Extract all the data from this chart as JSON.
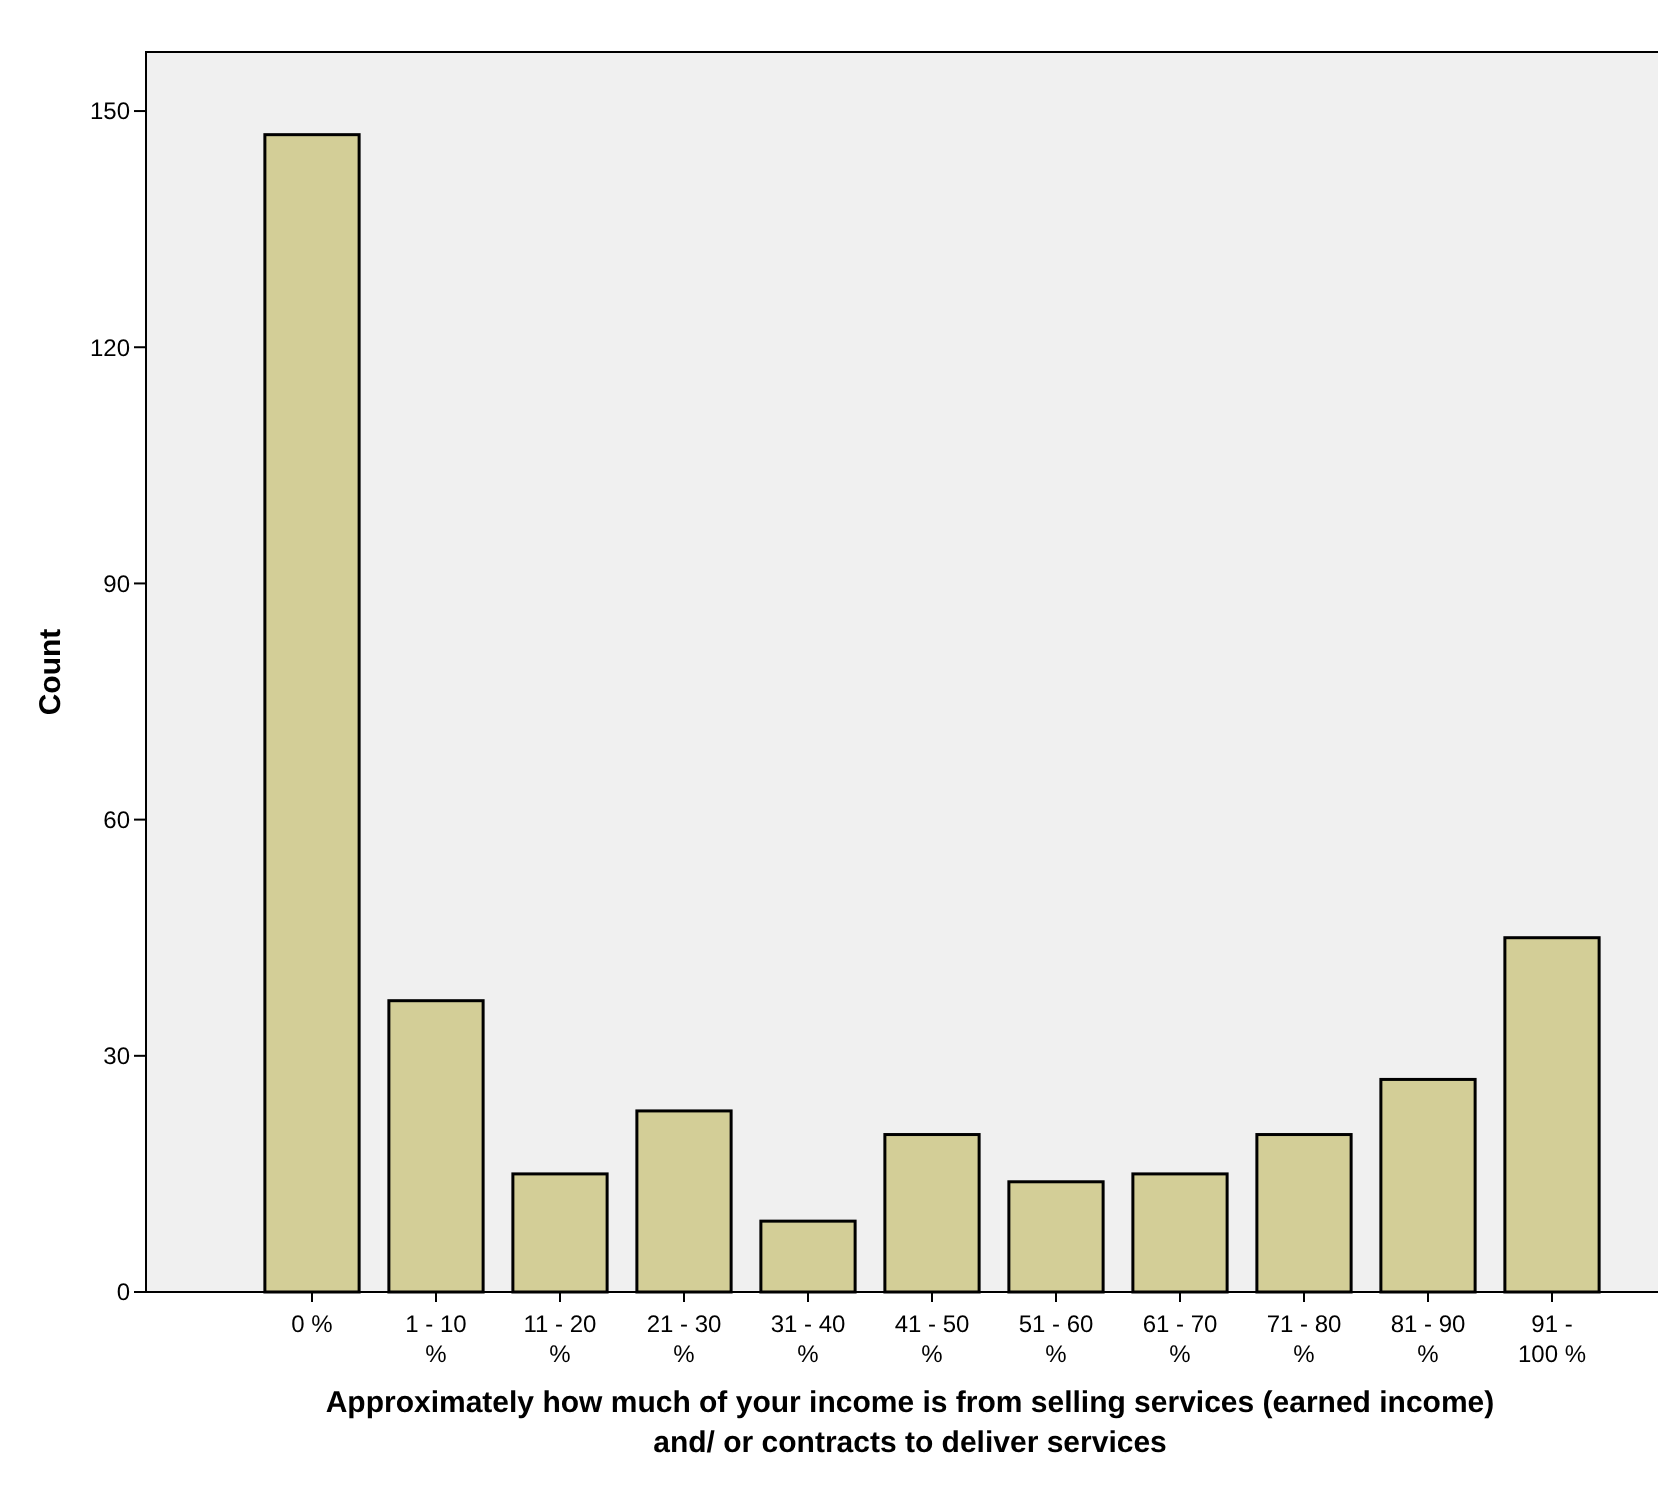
{
  "chart_data": {
    "type": "bar",
    "xlabel": "Approximately how much of your income is from selling services (earned income) and/ or contracts to deliver services",
    "ylabel": "Count",
    "categories": [
      "0 %",
      "1 - 10 %",
      "11 - 20 %",
      "21 - 30 %",
      "31 - 40 %",
      "41 - 50 %",
      "51 - 60 %",
      "61 - 70 %",
      "71 - 80 %",
      "81 - 90 %",
      "91 - 100 %"
    ],
    "values": [
      147,
      37,
      15,
      23,
      9,
      20,
      14,
      15,
      20,
      27,
      45
    ],
    "color": "#d3ce97",
    "ylim": [
      0,
      157.5
    ],
    "yticks": [
      0,
      30,
      60,
      90,
      120,
      150
    ],
    "grid": false
  }
}
